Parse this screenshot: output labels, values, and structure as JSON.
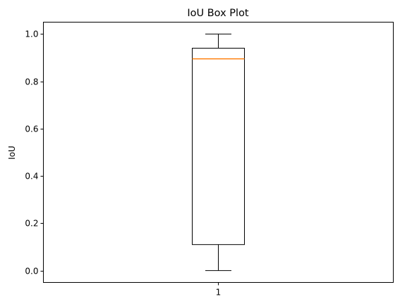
{
  "chart_data": {
    "type": "box",
    "title": "IoU Box Plot",
    "xlabel": "",
    "ylabel": "IoU",
    "categories": [
      "1"
    ],
    "boxes": [
      {
        "category": "1",
        "whisker_low": 0.0,
        "q1": 0.11,
        "median": 0.895,
        "q3": 0.94,
        "whisker_high": 1.0
      }
    ],
    "ylim": [
      -0.05,
      1.05
    ],
    "yticks": [
      0.0,
      0.2,
      0.4,
      0.6,
      0.8,
      1.0
    ],
    "ytick_labels": [
      "0.0",
      "0.2",
      "0.4",
      "0.6",
      "0.8",
      "1.0"
    ],
    "grid": false,
    "colors": {
      "box": "#000000",
      "median": "#ff7f0e",
      "axes": "#000000",
      "background": "#ffffff"
    }
  }
}
